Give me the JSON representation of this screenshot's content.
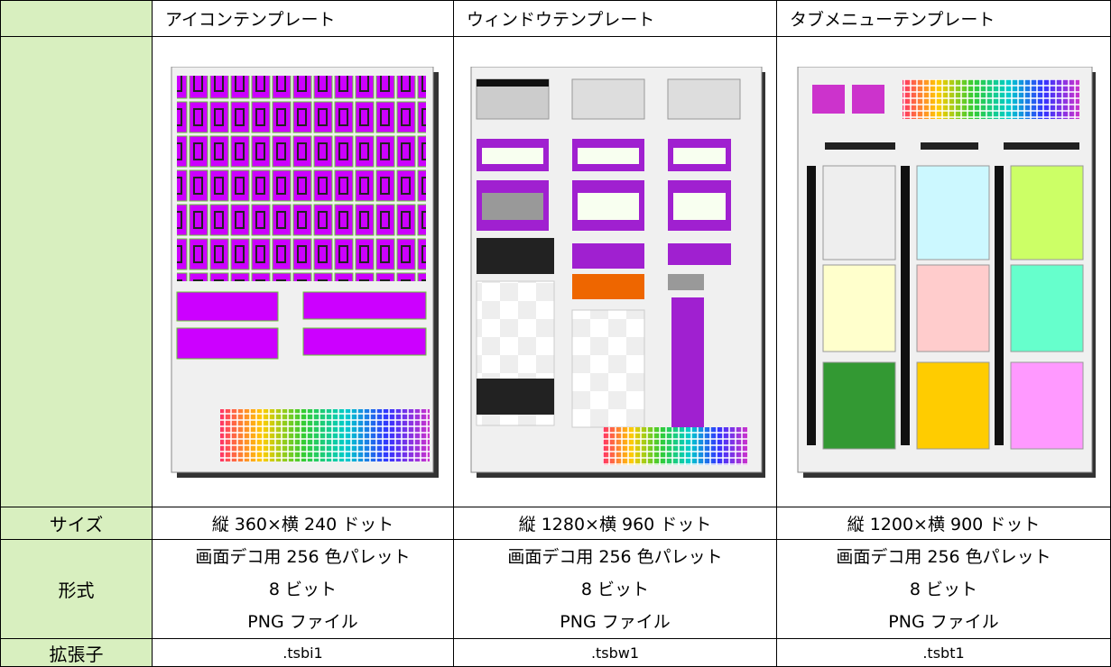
{
  "table": {
    "columns": [
      "アイコンテンプレート",
      "ウィンドウテンプレート",
      "タブメニューテンプレート"
    ],
    "rows": [
      {
        "label": "サイズ",
        "cells": [
          "縦 360×横 240 ドット",
          "縦 1280×横 960 ドット",
          "縦 1200×横 900 ドット"
        ]
      },
      {
        "label": "形式",
        "cells": [
          [
            "画面デコ用 256 色パレット",
            "8 ビット",
            "PNG ファイル"
          ],
          [
            "画面デコ用 256 色パレット",
            "8 ビット",
            "PNG ファイル"
          ],
          [
            "画面デコ用 256 色パレット",
            "8 ビット",
            "PNG ファイル"
          ]
        ]
      },
      {
        "label": "拡張子",
        "cells": [
          ".tsbi1",
          ".tsbw1",
          ".tsbt1"
        ]
      }
    ]
  }
}
